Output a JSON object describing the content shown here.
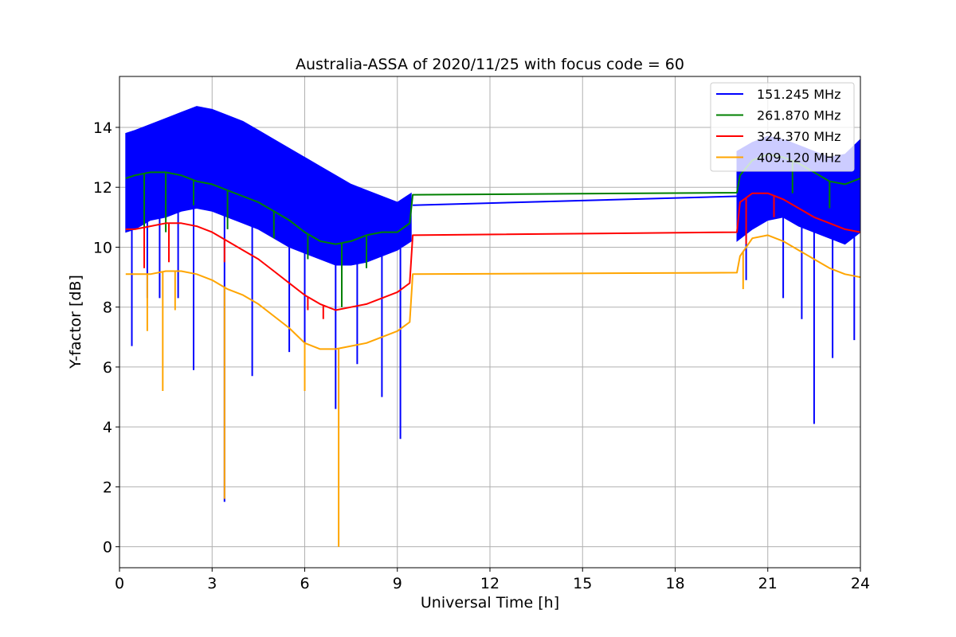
{
  "chart_data": {
    "type": "line",
    "title": "Australia-ASSA of 2020/11/25 with focus code = 60",
    "xlabel": "Universal Time [h]",
    "ylabel": "Y-factor [dB]",
    "xlim": [
      0,
      24
    ],
    "ylim": [
      -0.7,
      15.7
    ],
    "xticks": [
      0,
      3,
      6,
      9,
      12,
      15,
      18,
      21,
      24
    ],
    "yticks": [
      0,
      2,
      4,
      6,
      8,
      10,
      12,
      14
    ],
    "grid": true,
    "legend_position": "top-right",
    "series": [
      {
        "name": "151.245 MHz",
        "color": "#0000ff",
        "band": {
          "x": [
            0.2,
            0.5,
            1.0,
            1.5,
            2.0,
            2.5,
            3.0,
            3.5,
            4.0,
            4.5,
            5.0,
            5.5,
            6.0,
            6.5,
            7.0,
            7.5,
            8.0,
            8.5,
            9.0,
            9.45,
            20.0,
            20.5,
            21.0,
            21.5,
            22.0,
            22.5,
            23.0,
            23.5,
            24.0
          ],
          "upper": [
            13.8,
            13.9,
            14.1,
            14.3,
            14.5,
            14.7,
            14.6,
            14.4,
            14.2,
            13.9,
            13.6,
            13.3,
            13.0,
            12.7,
            12.4,
            12.1,
            11.9,
            11.7,
            11.5,
            11.8,
            13.2,
            13.5,
            13.7,
            13.6,
            13.4,
            13.2,
            13.0,
            13.1,
            13.6
          ],
          "lower": [
            10.5,
            10.6,
            10.9,
            11.0,
            11.2,
            11.3,
            11.2,
            11.0,
            10.8,
            10.6,
            10.3,
            10.0,
            9.8,
            9.6,
            9.4,
            9.4,
            9.5,
            9.7,
            9.9,
            10.2,
            10.2,
            10.6,
            10.9,
            11.0,
            10.7,
            10.5,
            10.3,
            10.1,
            10.5
          ]
        },
        "x": [
          9.5,
          20.0
        ],
        "y": [
          11.4,
          11.7
        ],
        "spikes": [
          {
            "x": 0.4,
            "y": 6.7
          },
          {
            "x": 0.9,
            "y": 8.3
          },
          {
            "x": 1.3,
            "y": 8.3
          },
          {
            "x": 1.9,
            "y": 8.3
          },
          {
            "x": 2.4,
            "y": 5.9
          },
          {
            "x": 3.4,
            "y": 1.5
          },
          {
            "x": 4.3,
            "y": 5.7
          },
          {
            "x": 5.5,
            "y": 6.5
          },
          {
            "x": 6.0,
            "y": 5.4
          },
          {
            "x": 7.0,
            "y": 4.6
          },
          {
            "x": 7.7,
            "y": 6.1
          },
          {
            "x": 8.5,
            "y": 5.0
          },
          {
            "x": 9.1,
            "y": 3.6
          },
          {
            "x": 20.3,
            "y": 8.9
          },
          {
            "x": 21.5,
            "y": 8.3
          },
          {
            "x": 22.1,
            "y": 7.6
          },
          {
            "x": 22.5,
            "y": 4.1
          },
          {
            "x": 23.1,
            "y": 6.3
          },
          {
            "x": 23.8,
            "y": 6.9
          }
        ]
      },
      {
        "name": "261.870 MHz",
        "color": "#008000",
        "x": [
          0.2,
          0.5,
          1.0,
          1.5,
          2.0,
          2.5,
          3.0,
          3.5,
          4.0,
          4.5,
          5.0,
          5.5,
          6.0,
          6.5,
          7.0,
          7.5,
          8.0,
          8.5,
          9.0,
          9.4,
          9.5,
          20.0,
          20.1,
          20.5,
          21.0,
          21.5,
          22.0,
          22.5,
          23.0,
          23.5,
          24.0
        ],
        "y": [
          12.3,
          12.4,
          12.5,
          12.5,
          12.4,
          12.2,
          12.1,
          11.9,
          11.7,
          11.5,
          11.2,
          10.9,
          10.5,
          10.2,
          10.1,
          10.2,
          10.4,
          10.5,
          10.5,
          10.8,
          11.75,
          11.82,
          12.4,
          12.9,
          13.1,
          13.0,
          12.8,
          12.5,
          12.2,
          12.1,
          12.3
        ],
        "spikes": [
          {
            "x": 0.8,
            "y": 9.9
          },
          {
            "x": 1.5,
            "y": 10.5
          },
          {
            "x": 2.4,
            "y": 11.4
          },
          {
            "x": 3.5,
            "y": 10.6
          },
          {
            "x": 5.0,
            "y": 10.3
          },
          {
            "x": 6.1,
            "y": 9.6
          },
          {
            "x": 7.2,
            "y": 8.0
          },
          {
            "x": 8.0,
            "y": 9.3
          },
          {
            "x": 21.8,
            "y": 11.8
          },
          {
            "x": 23.0,
            "y": 11.3
          }
        ]
      },
      {
        "name": "324.370 MHz",
        "color": "#ff0000",
        "x": [
          0.2,
          0.5,
          1.0,
          1.5,
          2.0,
          2.5,
          3.0,
          3.5,
          4.0,
          4.5,
          5.0,
          5.5,
          6.0,
          6.5,
          7.0,
          7.5,
          8.0,
          8.5,
          9.0,
          9.4,
          9.5,
          20.0,
          20.1,
          20.5,
          21.0,
          21.5,
          22.0,
          22.5,
          23.0,
          23.5,
          24.0
        ],
        "y": [
          10.6,
          10.6,
          10.7,
          10.8,
          10.8,
          10.7,
          10.5,
          10.2,
          9.9,
          9.6,
          9.2,
          8.8,
          8.4,
          8.1,
          7.9,
          8.0,
          8.1,
          8.3,
          8.5,
          8.8,
          10.4,
          10.5,
          11.5,
          11.8,
          11.8,
          11.6,
          11.3,
          11.0,
          10.8,
          10.6,
          10.5
        ],
        "spikes": [
          {
            "x": 0.8,
            "y": 9.3
          },
          {
            "x": 1.6,
            "y": 9.5
          },
          {
            "x": 3.4,
            "y": 9.5
          },
          {
            "x": 6.1,
            "y": 7.9
          },
          {
            "x": 6.6,
            "y": 7.6
          },
          {
            "x": 20.3,
            "y": 10.1
          },
          {
            "x": 21.2,
            "y": 11.0
          }
        ]
      },
      {
        "name": "409.120 MHz",
        "color": "#ffa500",
        "x": [
          0.2,
          0.5,
          1.0,
          1.5,
          2.0,
          2.5,
          3.0,
          3.5,
          4.0,
          4.5,
          5.0,
          5.5,
          6.0,
          6.5,
          7.0,
          7.5,
          8.0,
          8.5,
          9.0,
          9.4,
          9.5,
          20.0,
          20.1,
          20.5,
          21.0,
          21.5,
          22.0,
          22.5,
          23.0,
          23.5,
          24.0
        ],
        "y": [
          9.1,
          9.1,
          9.1,
          9.2,
          9.2,
          9.1,
          8.9,
          8.6,
          8.4,
          8.1,
          7.7,
          7.3,
          6.8,
          6.6,
          6.6,
          6.7,
          6.8,
          7.0,
          7.2,
          7.5,
          9.1,
          9.15,
          9.7,
          10.3,
          10.4,
          10.2,
          9.9,
          9.6,
          9.3,
          9.1,
          9.0
        ],
        "spikes": [
          {
            "x": 0.9,
            "y": 7.2
          },
          {
            "x": 1.4,
            "y": 5.2
          },
          {
            "x": 1.8,
            "y": 7.9
          },
          {
            "x": 3.4,
            "y": 1.6
          },
          {
            "x": 6.0,
            "y": 5.2
          },
          {
            "x": 7.1,
            "y": 0.0
          },
          {
            "x": 20.2,
            "y": 8.6
          }
        ]
      }
    ]
  }
}
